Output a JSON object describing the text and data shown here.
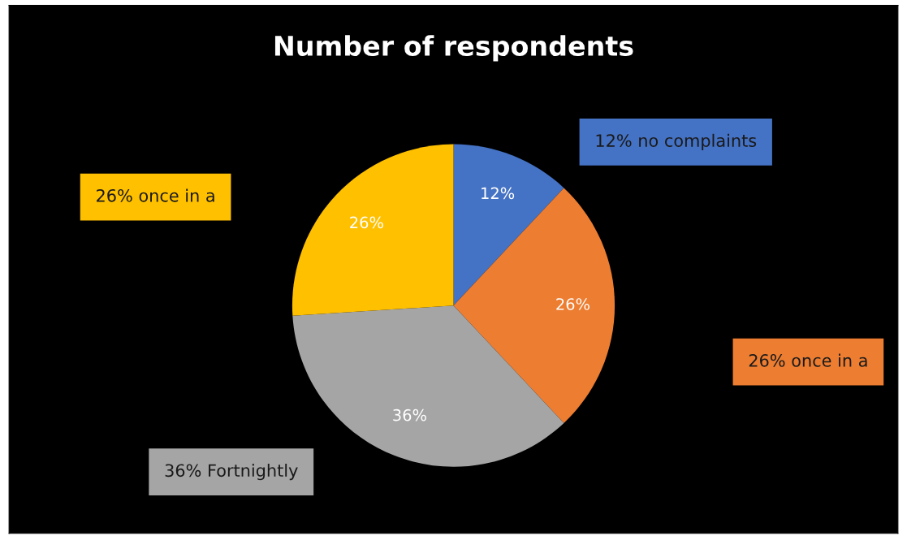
{
  "chart_data": {
    "type": "pie",
    "title": "Number of respondents",
    "categories": [
      "12% no complaints",
      "26% once in a",
      "36% Fortnightly",
      "26% once in a"
    ],
    "values": [
      12,
      26,
      36,
      26
    ],
    "value_labels": [
      "12%",
      "26%",
      "36%",
      "26%"
    ],
    "colors": [
      "#4472c4",
      "#ed7d31",
      "#a5a5a5",
      "#ffc000"
    ],
    "legend": false
  }
}
